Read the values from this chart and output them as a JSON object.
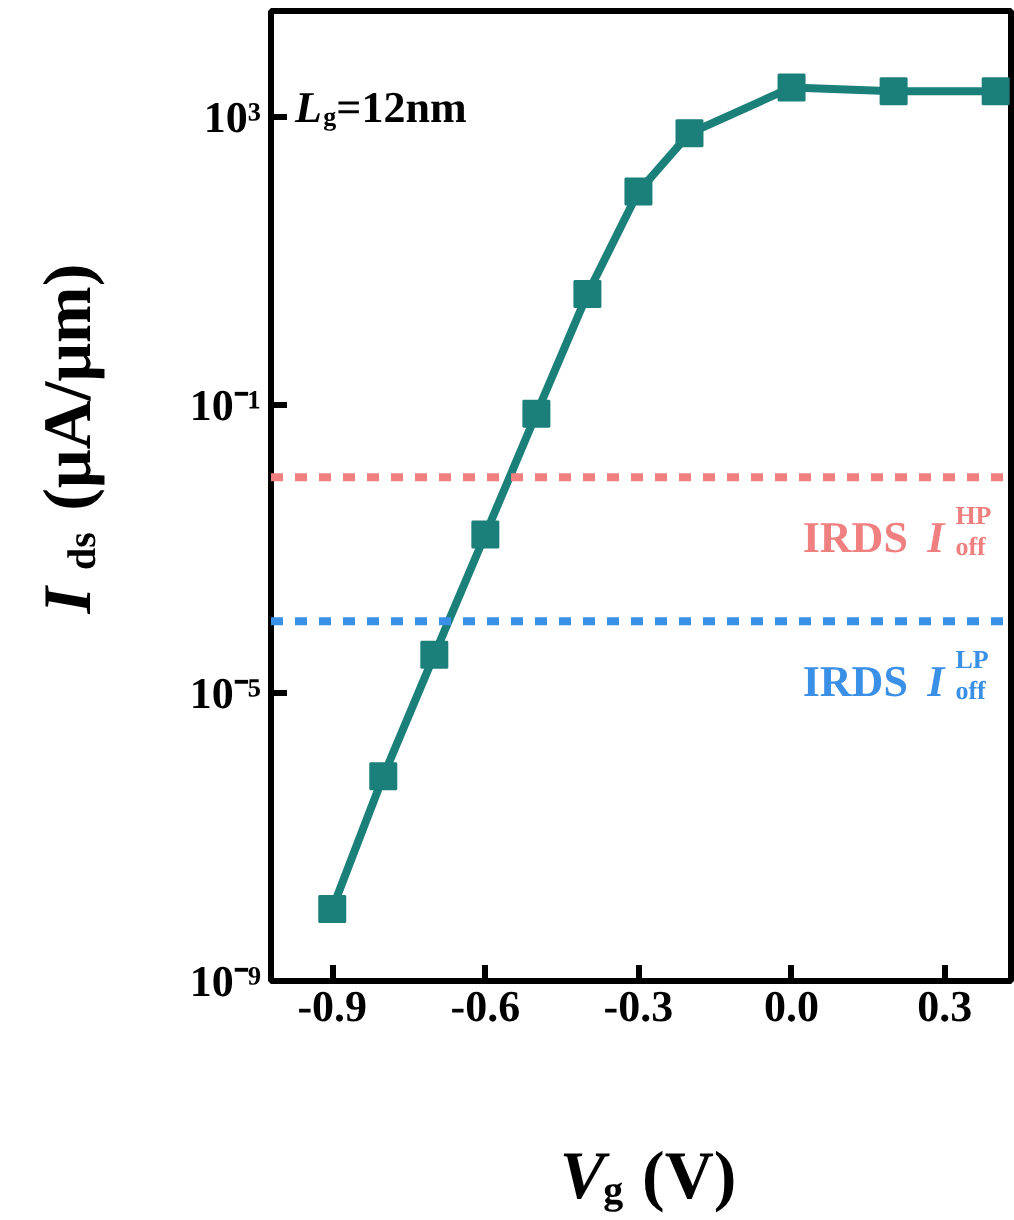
{
  "chart_data": {
    "type": "line",
    "xlabel": "V$_{g}$ (V)",
    "ylabel": "I$_{ds}$ (μA/μm)",
    "annotations": [
      "L$_{g}$=12nm"
    ],
    "x": [
      -0.9,
      -0.8,
      -0.7,
      -0.6,
      -0.5,
      -0.4,
      -0.3,
      -0.2,
      0.0,
      0.2,
      0.4
    ],
    "series": [
      {
        "color": "#1b7f7a",
        "values": [
          1e-08,
          7e-07,
          3.4e-05,
          0.0016,
          0.076,
          3.5,
          93,
          600,
          2600,
          2300,
          2300
        ]
      }
    ],
    "marker": "square",
    "line_style": "solid",
    "log": "y",
    "grid": false,
    "xlim": [
      -1.02,
      0.43
    ],
    "xticks": [
      -0.9,
      -0.6,
      -0.3,
      {
        "value": 0.0,
        "label": "0.0"
      },
      0.3
    ],
    "ylim": [
      1e-09,
      30000
    ],
    "yticks": [
      {
        "value": 1e-09,
        "label": "10⁻⁹"
      },
      {
        "value": 1e-05,
        "label": "10⁻⁵"
      },
      {
        "value": 0.1,
        "label": "10⁻¹"
      },
      {
        "value": 1000,
        "label": "10³"
      }
    ],
    "ref_lines": [
      {
        "axis": "y",
        "value": 0.01,
        "label": "IRDS I$^{HP}$$_{off}$",
        "color": "#f08080",
        "line_style": "dashed"
      },
      {
        "axis": "y",
        "value": 0.0001,
        "label": "IRDS I$^{LP}$$_{off}$",
        "color": "#3a8fe6",
        "line_style": "dashed"
      }
    ]
  }
}
